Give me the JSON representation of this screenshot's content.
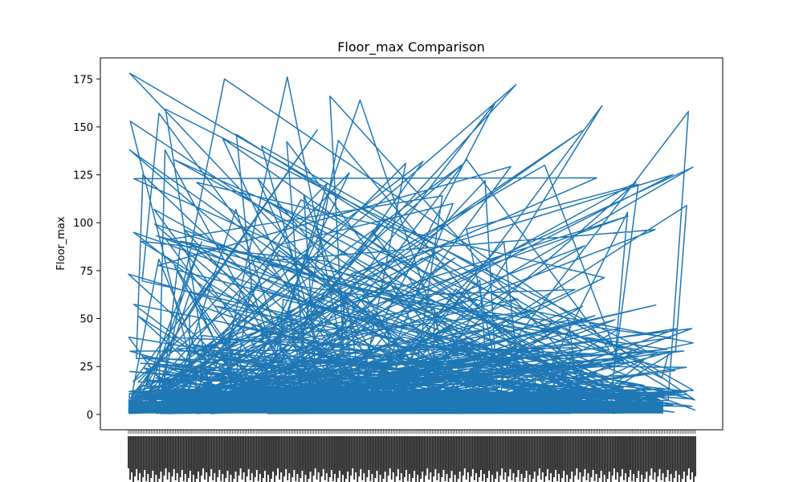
{
  "chart_data": {
    "type": "line",
    "title": "Floor_max Comparison",
    "xlabel": "",
    "ylabel": "Floor_max",
    "ylim": [
      -8,
      186
    ],
    "yticks": [
      0,
      25,
      50,
      75,
      100,
      125,
      150,
      175
    ],
    "ytick_labels": [
      "0",
      "25",
      "50",
      "75",
      "100",
      "125",
      "150",
      "175"
    ],
    "x_tick_labels_note": "",
    "grid": false,
    "legend": "none",
    "series": [
      {
        "color": "#1f77b4",
        "point_count": 700,
        "sample_values": [
          9,
          2,
          130,
          158,
          20,
          45,
          5,
          140,
          3,
          138,
          60,
          163,
          12,
          131,
          2,
          25,
          125,
          8,
          88,
          4,
          166,
          30,
          7,
          120,
          15,
          95,
          3,
          40,
          133,
          6,
          70,
          178,
          18,
          3,
          102,
          11,
          55,
          138,
          2,
          34,
          126,
          9,
          80,
          4,
          161,
          22,
          6,
          130,
          14,
          68,
          2,
          175,
          5,
          38,
          110,
          3,
          129,
          19,
          90,
          7,
          45,
          172,
          2,
          164,
          4,
          123,
          30,
          176,
          11,
          60,
          122,
          3,
          86,
          143,
          9,
          132,
          2,
          121,
          20,
          148,
          5,
          107,
          112,
          14,
          45,
          3,
          109,
          57,
          8,
          26,
          37,
          2,
          24,
          19,
          1
        ]
      }
    ]
  }
}
